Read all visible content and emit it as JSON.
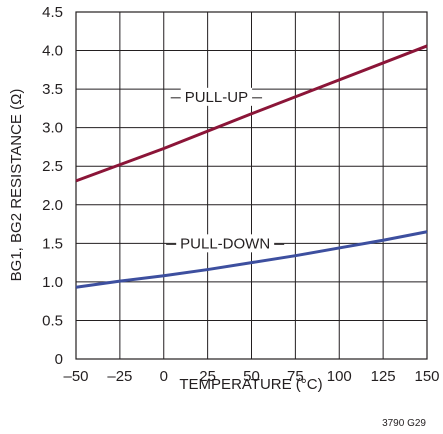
{
  "chart_data": {
    "type": "line",
    "title": "",
    "xlabel": "TEMPERATURE (°C)",
    "ylabel": "BG1, BG2 RESISTANCE (Ω)",
    "xlim": [
      -50,
      150
    ],
    "ylim": [
      0,
      4.5
    ],
    "grid": true,
    "x_ticks": [
      -50,
      -25,
      0,
      25,
      50,
      75,
      100,
      125,
      150
    ],
    "x_tick_labels": [
      "–50",
      "–25",
      "0",
      "25",
      "50",
      "75",
      "100",
      "125",
      "150"
    ],
    "y_ticks": [
      0,
      0.5,
      1.0,
      1.5,
      2.0,
      2.5,
      3.0,
      3.5,
      4.0,
      4.5
    ],
    "y_tick_labels": [
      "0",
      "0.5",
      "1.0",
      "1.5",
      "2.0",
      "2.5",
      "3.0",
      "3.5",
      "4.0",
      "4.5"
    ],
    "series": [
      {
        "name": "PULL-UP",
        "color": "#8b1538",
        "x": [
          -50,
          0,
          50,
          100,
          150
        ],
        "y": [
          2.31,
          2.73,
          3.18,
          3.62,
          4.06
        ]
      },
      {
        "name": "PULL-DOWN",
        "color": "#3d4f9f",
        "x": [
          -50,
          -25,
          0,
          25,
          50,
          75,
          100,
          125,
          150
        ],
        "y": [
          0.93,
          1.01,
          1.08,
          1.16,
          1.25,
          1.34,
          1.44,
          1.54,
          1.65
        ]
      }
    ],
    "figure_id": "3790 G29"
  }
}
